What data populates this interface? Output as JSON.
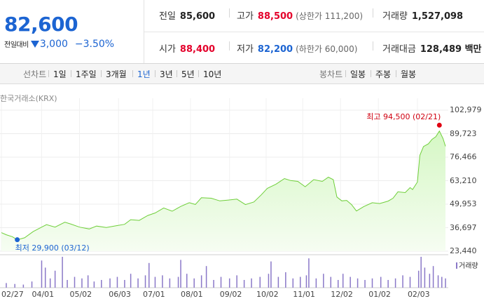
{
  "header": {
    "price": "82,600",
    "change_label": "전일대비",
    "change_value": "3,000",
    "change_pct": "−3.50%",
    "prev_close": {
      "label": "전일",
      "value": "85,600"
    },
    "open": {
      "label": "시가",
      "value": "88,400"
    },
    "high": {
      "label": "고가",
      "value": "88,500",
      "sub": "(상한가 111,200)"
    },
    "low": {
      "label": "저가",
      "value": "82,200",
      "sub": "(하한가 60,000)"
    },
    "volume": {
      "label": "거래량",
      "value": "1,527,098"
    },
    "amount": {
      "label": "거래대금",
      "value": "128,489 백만"
    }
  },
  "toolbar": {
    "line_label": "선차트",
    "periods": [
      "1일",
      "1주일",
      "3개월",
      "1년",
      "3년",
      "5년",
      "10년"
    ],
    "active_period": "1년",
    "candle_label": "봉차트",
    "candles": [
      "일봉",
      "주봉",
      "월봉"
    ]
  },
  "colors": {
    "price_up": "#e4002b",
    "price_down": "#1c64d2",
    "line": "#6fcf3a",
    "volume": "#8a78c8"
  },
  "chart_data": {
    "type": "area",
    "source": "한국거래소(KRX)",
    "high_label": "최고 94,500 (02/21)",
    "low_label": "최저 29,900 (03/12)",
    "high_point": {
      "x": "2024-02-21",
      "y": 94500
    },
    "low_point": {
      "x": "2023-03-12",
      "y": 29900
    },
    "ylim": [
      23440,
      102979
    ],
    "yticks": [
      "102,979",
      "89,723",
      "76,466",
      "63,210",
      "49,953",
      "36,697",
      "23,440"
    ],
    "xlim": [
      "2023-02-27",
      "2024-02-26"
    ],
    "xticks": [
      {
        "label": "02/27",
        "x": "2023-02-27"
      },
      {
        "label": "04/01",
        "x": "2023-04-01"
      },
      {
        "label": "05/02",
        "x": "2023-05-02"
      },
      {
        "label": "06/03",
        "x": "2023-06-03"
      },
      {
        "label": "07/01",
        "x": "2023-07-01"
      },
      {
        "label": "08/01",
        "x": "2023-08-01"
      },
      {
        "label": "09/02",
        "x": "2023-09-02"
      },
      {
        "label": "10/02",
        "x": "2023-10-02"
      },
      {
        "label": "11/01",
        "x": "2023-11-01"
      },
      {
        "label": "12/02",
        "x": "2023-12-02"
      },
      {
        "label": "01/02",
        "x": "2024-01-02"
      },
      {
        "label": "02/03",
        "x": "2024-02-03"
      }
    ],
    "series": [
      {
        "points": [
          [
            "2023-02-27",
            33900
          ],
          [
            "2023-03-03",
            32700
          ],
          [
            "2023-03-08",
            31600
          ],
          [
            "2023-03-12",
            29900
          ],
          [
            "2023-03-18",
            31000
          ],
          [
            "2023-03-25",
            34500
          ],
          [
            "2023-04-01",
            37000
          ],
          [
            "2023-04-05",
            38400
          ],
          [
            "2023-04-12",
            37000
          ],
          [
            "2023-04-20",
            39800
          ],
          [
            "2023-04-25",
            38700
          ],
          [
            "2023-05-02",
            37000
          ],
          [
            "2023-05-10",
            36000
          ],
          [
            "2023-05-16",
            37600
          ],
          [
            "2023-05-24",
            36800
          ],
          [
            "2023-06-01",
            37800
          ],
          [
            "2023-06-08",
            38600
          ],
          [
            "2023-06-13",
            41200
          ],
          [
            "2023-06-20",
            40800
          ],
          [
            "2023-06-27",
            43600
          ],
          [
            "2023-07-03",
            45000
          ],
          [
            "2023-07-10",
            47800
          ],
          [
            "2023-07-17",
            46000
          ],
          [
            "2023-07-24",
            48700
          ],
          [
            "2023-07-31",
            50800
          ],
          [
            "2023-08-05",
            49800
          ],
          [
            "2023-08-10",
            53600
          ],
          [
            "2023-08-18",
            53300
          ],
          [
            "2023-08-25",
            51800
          ],
          [
            "2023-09-01",
            52300
          ],
          [
            "2023-09-08",
            52800
          ],
          [
            "2023-09-15",
            49700
          ],
          [
            "2023-09-22",
            51200
          ],
          [
            "2023-09-28",
            55200
          ],
          [
            "2023-10-03",
            58900
          ],
          [
            "2023-10-10",
            61200
          ],
          [
            "2023-10-17",
            64400
          ],
          [
            "2023-10-22",
            63300
          ],
          [
            "2023-10-28",
            62800
          ],
          [
            "2023-11-03",
            59800
          ],
          [
            "2023-11-10",
            63800
          ],
          [
            "2023-11-17",
            62800
          ],
          [
            "2023-11-22",
            65200
          ],
          [
            "2023-11-26",
            63800
          ],
          [
            "2023-11-29",
            54000
          ],
          [
            "2023-12-03",
            51800
          ],
          [
            "2023-12-07",
            52100
          ],
          [
            "2023-12-11",
            49700
          ],
          [
            "2023-12-15",
            46100
          ],
          [
            "2023-12-21",
            48600
          ],
          [
            "2023-12-28",
            50800
          ],
          [
            "2024-01-03",
            50300
          ],
          [
            "2024-01-10",
            51700
          ],
          [
            "2024-01-14",
            53300
          ],
          [
            "2024-01-18",
            56900
          ],
          [
            "2024-01-24",
            56500
          ],
          [
            "2024-01-28",
            59300
          ],
          [
            "2024-01-30",
            58200
          ],
          [
            "2024-02-03",
            62400
          ],
          [
            "2024-02-05",
            77500
          ],
          [
            "2024-02-08",
            82500
          ],
          [
            "2024-02-12",
            84000
          ],
          [
            "2024-02-15",
            86500
          ],
          [
            "2024-02-18",
            88000
          ],
          [
            "2024-02-21",
            91200
          ],
          [
            "2024-02-24",
            87000
          ],
          [
            "2024-02-26",
            82600
          ]
        ]
      }
    ],
    "volume_legend": "거래량",
    "volume": [
      [
        "2023-03-03",
        0.15
      ],
      [
        "2023-03-10",
        0.12
      ],
      [
        "2023-03-17",
        0.1
      ],
      [
        "2023-03-24",
        0.2
      ],
      [
        "2023-04-01",
        0.88
      ],
      [
        "2023-04-04",
        0.65
      ],
      [
        "2023-04-08",
        0.3
      ],
      [
        "2023-04-12",
        0.55
      ],
      [
        "2023-04-18",
        1.0
      ],
      [
        "2023-04-22",
        0.25
      ],
      [
        "2023-04-28",
        0.35
      ],
      [
        "2023-05-04",
        0.3
      ],
      [
        "2023-05-09",
        0.4
      ],
      [
        "2023-05-14",
        0.2
      ],
      [
        "2023-05-20",
        0.25
      ],
      [
        "2023-05-27",
        0.3
      ],
      [
        "2023-06-02",
        0.35
      ],
      [
        "2023-06-08",
        0.25
      ],
      [
        "2023-06-13",
        0.45
      ],
      [
        "2023-06-19",
        0.3
      ],
      [
        "2023-06-25",
        0.4
      ],
      [
        "2023-06-28",
        0.8
      ],
      [
        "2023-07-03",
        0.35
      ],
      [
        "2023-07-09",
        0.4
      ],
      [
        "2023-07-15",
        0.3
      ],
      [
        "2023-07-22",
        0.35
      ],
      [
        "2023-07-24",
        0.9
      ],
      [
        "2023-07-29",
        0.45
      ],
      [
        "2023-08-04",
        0.3
      ],
      [
        "2023-08-10",
        0.4
      ],
      [
        "2023-08-14",
        0.7
      ],
      [
        "2023-08-20",
        0.25
      ],
      [
        "2023-08-26",
        0.35
      ],
      [
        "2023-09-02",
        0.3
      ],
      [
        "2023-09-08",
        0.4
      ],
      [
        "2023-09-14",
        0.25
      ],
      [
        "2023-09-20",
        0.3
      ],
      [
        "2023-09-27",
        0.35
      ],
      [
        "2023-10-04",
        0.45
      ],
      [
        "2023-10-06",
        0.85
      ],
      [
        "2023-10-12",
        0.35
      ],
      [
        "2023-10-18",
        0.5
      ],
      [
        "2023-10-24",
        0.3
      ],
      [
        "2023-10-30",
        0.35
      ],
      [
        "2023-11-04",
        0.4
      ],
      [
        "2023-11-06",
        0.95
      ],
      [
        "2023-11-12",
        0.3
      ],
      [
        "2023-11-18",
        0.45
      ],
      [
        "2023-11-24",
        0.35
      ],
      [
        "2023-11-30",
        0.25
      ],
      [
        "2023-12-04",
        0.45
      ],
      [
        "2023-12-10",
        0.35
      ],
      [
        "2023-12-16",
        0.3
      ],
      [
        "2023-12-22",
        0.25
      ],
      [
        "2023-12-28",
        0.3
      ],
      [
        "2024-01-04",
        0.35
      ],
      [
        "2024-01-10",
        0.25
      ],
      [
        "2024-01-16",
        0.3
      ],
      [
        "2024-01-22",
        0.4
      ],
      [
        "2024-01-28",
        0.35
      ],
      [
        "2024-02-04",
        0.55
      ],
      [
        "2024-02-06",
        1.0
      ],
      [
        "2024-02-09",
        0.65
      ],
      [
        "2024-02-13",
        0.45
      ],
      [
        "2024-02-16",
        0.7
      ],
      [
        "2024-02-20",
        0.4
      ],
      [
        "2024-02-23",
        0.35
      ],
      [
        "2024-02-26",
        0.3
      ]
    ]
  }
}
